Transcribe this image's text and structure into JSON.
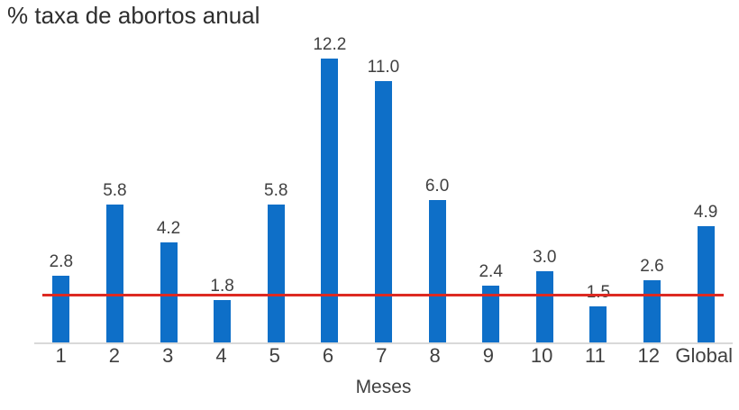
{
  "chart_data": {
    "type": "bar",
    "title": "% taxa de abortos anual",
    "xlabel": "Meses",
    "ylabel": "",
    "categories": [
      "1",
      "2",
      "3",
      "4",
      "5",
      "6",
      "7",
      "8",
      "9",
      "10",
      "11",
      "12",
      "Global"
    ],
    "values": [
      2.8,
      5.8,
      4.2,
      1.8,
      5.8,
      12.2,
      11.0,
      6.0,
      2.4,
      3.0,
      1.5,
      2.6,
      4.9
    ],
    "labels": [
      "2.8",
      "5.8",
      "4.2",
      "1.8",
      "5.8",
      "12.2",
      "11.0",
      "6.0",
      "2.4",
      "3.0",
      "1.5",
      "2.6",
      "4.9"
    ],
    "ylim": [
      0,
      12.9
    ],
    "grid": false,
    "legend": "none",
    "reference_line": {
      "value": 2.0,
      "color": "#dd2a22"
    },
    "bar_color": "#0e6fc8",
    "axis_line_color": "#d9d9d9",
    "text_color": "#404040",
    "title_color": "#2e2e2e"
  }
}
